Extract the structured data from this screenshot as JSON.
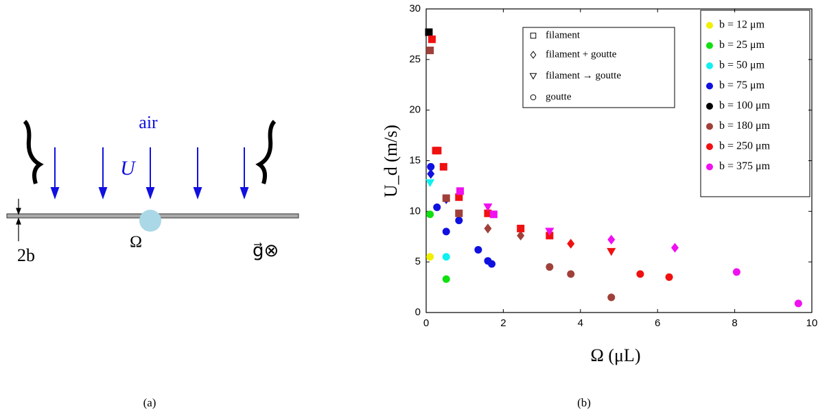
{
  "diagram": {
    "air_label": "air",
    "velocity_label": "U",
    "volume_label": "Ω",
    "thickness_label": "2b",
    "gravity_label": "g⃗⊗",
    "caption": "(a)"
  },
  "chart_data": {
    "type": "scatter",
    "caption": "(b)",
    "x_label": "Ω (μL)",
    "y_label": "U_d (m/s)",
    "xlim": [
      0,
      10
    ],
    "xticks": [
      0,
      2,
      4,
      6,
      8,
      10
    ],
    "ylim": [
      0,
      30
    ],
    "yticks": [
      0,
      5,
      10,
      15,
      20,
      25,
      30
    ],
    "marker_legend": [
      {
        "name": "filament",
        "marker": "square"
      },
      {
        "name": "filament + goutte",
        "marker": "diamond"
      },
      {
        "name": "filament → goutte",
        "marker": "triangle-down"
      },
      {
        "name": "goutte",
        "marker": "circle"
      }
    ],
    "series": [
      {
        "name": "b = 12 μm",
        "color": "#f0f000",
        "x": [
          0.1
        ],
        "values": [
          5.5
        ],
        "markers": [
          "circle"
        ]
      },
      {
        "name": "b = 25 μm",
        "color": "#10e010",
        "x": [
          0.1,
          0.52
        ],
        "values": [
          9.7,
          3.3
        ],
        "markers": [
          "circle",
          "circle"
        ]
      },
      {
        "name": "b = 50 μm",
        "color": "#10f0f0",
        "x": [
          0.1,
          0.52
        ],
        "values": [
          12.8,
          5.5
        ],
        "markers": [
          "triangle-down",
          "circle"
        ]
      },
      {
        "name": "b = 75 μm",
        "color": "#1010e0",
        "x": [
          0.12,
          0.12,
          0.52,
          0.28,
          0.52,
          0.85,
          1.35,
          1.6,
          1.7
        ],
        "values": [
          14.4,
          13.7,
          11.2,
          10.4,
          8.0,
          9.1,
          6.2,
          5.1,
          4.8
        ],
        "markers": [
          "circle",
          "diamond",
          "diamond",
          "circle",
          "circle",
          "circle",
          "circle",
          "circle",
          "circle"
        ]
      },
      {
        "name": "b = 100 μm",
        "color": "#000000",
        "x": [
          0.07
        ],
        "values": [
          27.7
        ],
        "markers": [
          "square"
        ]
      },
      {
        "name": "b = 180 μm",
        "color": "#a0403a",
        "x": [
          0.1,
          0.52,
          0.85,
          1.6,
          2.45,
          3.2,
          3.75,
          4.8
        ],
        "values": [
          25.9,
          11.3,
          9.8,
          8.3,
          7.6,
          4.5,
          3.8,
          1.5
        ],
        "markers": [
          "square",
          "square",
          "square",
          "diamond",
          "diamond",
          "circle",
          "circle",
          "circle"
        ]
      },
      {
        "name": "b = 250 μm",
        "color": "#f01010",
        "x": [
          0.15,
          0.25,
          0.3,
          0.45,
          0.85,
          1.6,
          2.45,
          3.2,
          3.75,
          4.8,
          5.55,
          6.3
        ],
        "values": [
          27.0,
          16.0,
          16.0,
          14.4,
          11.4,
          9.8,
          8.3,
          7.6,
          6.8,
          6.0,
          3.8,
          3.5
        ],
        "markers": [
          "square",
          "square",
          "square",
          "square",
          "square",
          "square",
          "square",
          "square",
          "diamond",
          "triangle-down",
          "circle",
          "circle"
        ]
      },
      {
        "name": "b = 375 μm",
        "color": "#f010f0",
        "x": [
          0.88,
          1.75,
          1.6,
          3.2,
          4.8,
          6.45,
          8.05,
          9.65
        ],
        "values": [
          12.0,
          9.7,
          10.4,
          8.0,
          7.2,
          6.4,
          4.0,
          0.9
        ],
        "markers": [
          "square",
          "square",
          "triangle-down",
          "triangle-down",
          "diamond",
          "diamond",
          "circle",
          "circle"
        ]
      }
    ]
  }
}
